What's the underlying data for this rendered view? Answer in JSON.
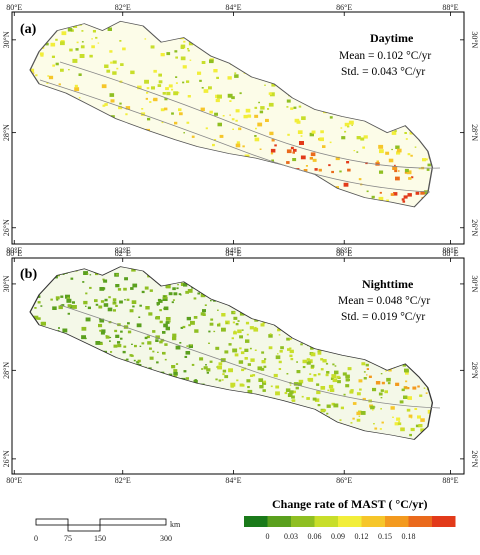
{
  "panels": [
    {
      "label": "(a)",
      "title": "Daytime",
      "mean_text": "Mean = 0.102 °C/yr",
      "std_text": "Std. = 0.043 °C/yr",
      "top_ticks": [
        "80°E",
        "82°E",
        "84°E",
        "86°E",
        "88°E"
      ],
      "bottom_ticks": [
        "80°E",
        "82°E",
        "84°E",
        "86°E",
        "88°E"
      ],
      "left_ticks": [
        "30°N",
        "28°N",
        "26°N"
      ],
      "right_ticks": [
        "30°N",
        "28°N",
        "26°N"
      ]
    },
    {
      "label": "(b)",
      "title": "Nighttime",
      "mean_text": "Mean = 0.048 °C/yr",
      "std_text": "Std. = 0.019 °C/yr",
      "top_ticks": [
        "80°E",
        "82°E",
        "84°E",
        "86°E",
        "88°E"
      ],
      "bottom_ticks": [
        "80°E",
        "82°E",
        "84°E",
        "86°E",
        "88°E"
      ],
      "left_ticks": [
        "30°N",
        "28°N",
        "26°N"
      ],
      "right_ticks": [
        "30°N",
        "28°N",
        "26°N"
      ]
    }
  ],
  "legend": {
    "title": "Change rate of MAST ( °C/yr)",
    "colors": [
      "#1a7a1a",
      "#5aa01e",
      "#8fbf22",
      "#c8de2a",
      "#f2ee3a",
      "#f6c62a",
      "#f39a1f",
      "#ea6a1c",
      "#e23a1a"
    ],
    "labels": [
      "0",
      "0.03",
      "0.06",
      "0.09",
      "0.12",
      "0.15",
      "0.18"
    ]
  },
  "scalebar": {
    "labels": [
      "0",
      "75",
      "150",
      "300"
    ],
    "unit": "km"
  }
}
